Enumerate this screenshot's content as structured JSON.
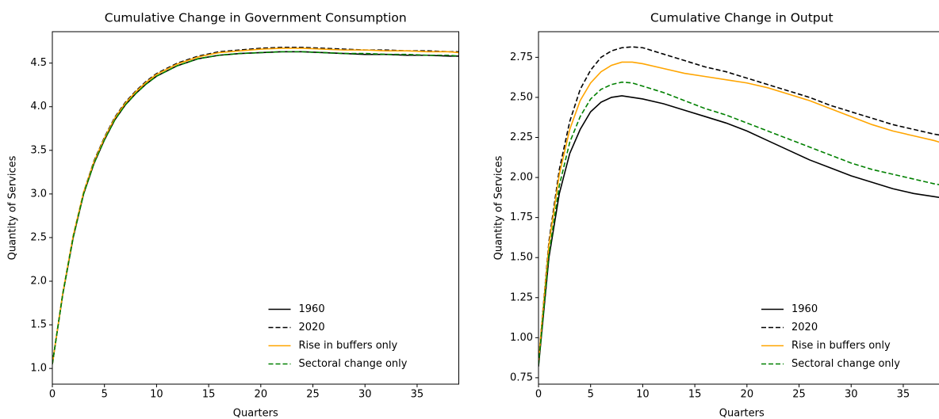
{
  "chart_data": [
    {
      "type": "line",
      "title": "Cumulative Change in Government Consumption",
      "xlabel": "Quarters",
      "ylabel": "Quantity of Services",
      "x": [
        0,
        1,
        2,
        3,
        4,
        5,
        6,
        7,
        8,
        9,
        10,
        12,
        14,
        16,
        18,
        20,
        22,
        24,
        26,
        28,
        30,
        32,
        34,
        36,
        38,
        39
      ],
      "xlim": [
        0,
        39
      ],
      "xticks": [
        0,
        5,
        10,
        15,
        20,
        25,
        30,
        35
      ],
      "ylim": [
        0.82,
        4.86
      ],
      "yticks": [
        {
          "value": 1,
          "label": "1.0"
        },
        1.5,
        {
          "value": 2,
          "label": "2.0"
        },
        2.5,
        {
          "value": 3,
          "label": "3.0"
        },
        3.5,
        {
          "value": 4,
          "label": "4.0"
        },
        4.5
      ],
      "legend": "lower right",
      "series": [
        {
          "name": "1960",
          "color": "#000000",
          "linestyle": "solid",
          "values": [
            1.05,
            1.85,
            2.5,
            3.0,
            3.35,
            3.62,
            3.85,
            4.02,
            4.15,
            4.26,
            4.35,
            4.47,
            4.55,
            4.59,
            4.61,
            4.62,
            4.63,
            4.63,
            4.62,
            4.61,
            4.6,
            4.6,
            4.59,
            4.59,
            4.58,
            4.58
          ]
        },
        {
          "name": "2020",
          "color": "#000000",
          "linestyle": "dashed",
          "values": [
            1.05,
            1.86,
            2.52,
            3.02,
            3.38,
            3.65,
            3.88,
            4.05,
            4.18,
            4.29,
            4.38,
            4.5,
            4.58,
            4.63,
            4.65,
            4.67,
            4.68,
            4.68,
            4.67,
            4.66,
            4.65,
            4.65,
            4.64,
            4.64,
            4.63,
            4.63
          ]
        },
        {
          "name": "Rise in buffers only",
          "color": "#ffa500",
          "linestyle": "solid",
          "values": [
            1.05,
            1.86,
            2.52,
            3.02,
            3.37,
            3.64,
            3.87,
            4.04,
            4.17,
            4.28,
            4.37,
            4.49,
            4.57,
            4.62,
            4.64,
            4.66,
            4.67,
            4.67,
            4.66,
            4.65,
            4.65,
            4.64,
            4.64,
            4.63,
            4.63,
            4.62
          ]
        },
        {
          "name": "Sectoral change only",
          "color": "#008000",
          "linestyle": "dashed",
          "values": [
            1.05,
            1.85,
            2.5,
            3.0,
            3.35,
            3.62,
            3.85,
            4.02,
            4.15,
            4.26,
            4.35,
            4.47,
            4.55,
            4.59,
            4.61,
            4.62,
            4.63,
            4.63,
            4.62,
            4.61,
            4.61,
            4.6,
            4.6,
            4.59,
            4.59,
            4.58
          ]
        }
      ]
    },
    {
      "type": "line",
      "title": "Cumulative Change in Output",
      "xlabel": "Quarters",
      "ylabel": "Quantity of Services",
      "x": [
        0,
        1,
        2,
        3,
        4,
        5,
        6,
        7,
        8,
        9,
        10,
        12,
        14,
        16,
        18,
        20,
        22,
        24,
        26,
        28,
        30,
        32,
        34,
        36,
        38,
        39
      ],
      "xlim": [
        0,
        39
      ],
      "xticks": [
        0,
        5,
        10,
        15,
        20,
        25,
        30,
        35
      ],
      "ylim": [
        0.71,
        2.91
      ],
      "yticks": [
        0.75,
        {
          "value": 1,
          "label": "1.00"
        },
        1.25,
        {
          "value": 1.5,
          "label": "1.50"
        },
        1.75,
        {
          "value": 2,
          "label": "2.00"
        },
        2.25,
        {
          "value": 2.5,
          "label": "2.50"
        },
        2.75
      ],
      "legend": "lower right",
      "series": [
        {
          "name": "1960",
          "color": "#000000",
          "linestyle": "solid",
          "values": [
            0.82,
            1.5,
            1.9,
            2.15,
            2.3,
            2.41,
            2.47,
            2.5,
            2.51,
            2.5,
            2.49,
            2.46,
            2.42,
            2.38,
            2.34,
            2.29,
            2.23,
            2.17,
            2.11,
            2.06,
            2.01,
            1.97,
            1.93,
            1.9,
            1.88,
            1.87
          ]
        },
        {
          "name": "2020",
          "color": "#000000",
          "linestyle": "dashed",
          "values": [
            0.85,
            1.6,
            2.05,
            2.35,
            2.55,
            2.67,
            2.75,
            2.79,
            2.81,
            2.815,
            2.81,
            2.77,
            2.73,
            2.69,
            2.66,
            2.62,
            2.58,
            2.54,
            2.5,
            2.45,
            2.41,
            2.37,
            2.33,
            2.3,
            2.27,
            2.26
          ]
        },
        {
          "name": "Rise in buffers only",
          "color": "#ffa500",
          "linestyle": "solid",
          "values": [
            0.85,
            1.58,
            2.02,
            2.3,
            2.48,
            2.59,
            2.66,
            2.7,
            2.72,
            2.72,
            2.71,
            2.68,
            2.65,
            2.63,
            2.61,
            2.59,
            2.56,
            2.52,
            2.48,
            2.43,
            2.38,
            2.33,
            2.29,
            2.26,
            2.23,
            2.21
          ]
        },
        {
          "name": "Sectoral change only",
          "color": "#008000",
          "linestyle": "dashed",
          "values": [
            0.83,
            1.52,
            1.95,
            2.22,
            2.38,
            2.49,
            2.55,
            2.58,
            2.595,
            2.59,
            2.57,
            2.53,
            2.48,
            2.43,
            2.39,
            2.34,
            2.29,
            2.24,
            2.19,
            2.14,
            2.09,
            2.05,
            2.02,
            1.99,
            1.96,
            1.95
          ]
        }
      ]
    }
  ]
}
